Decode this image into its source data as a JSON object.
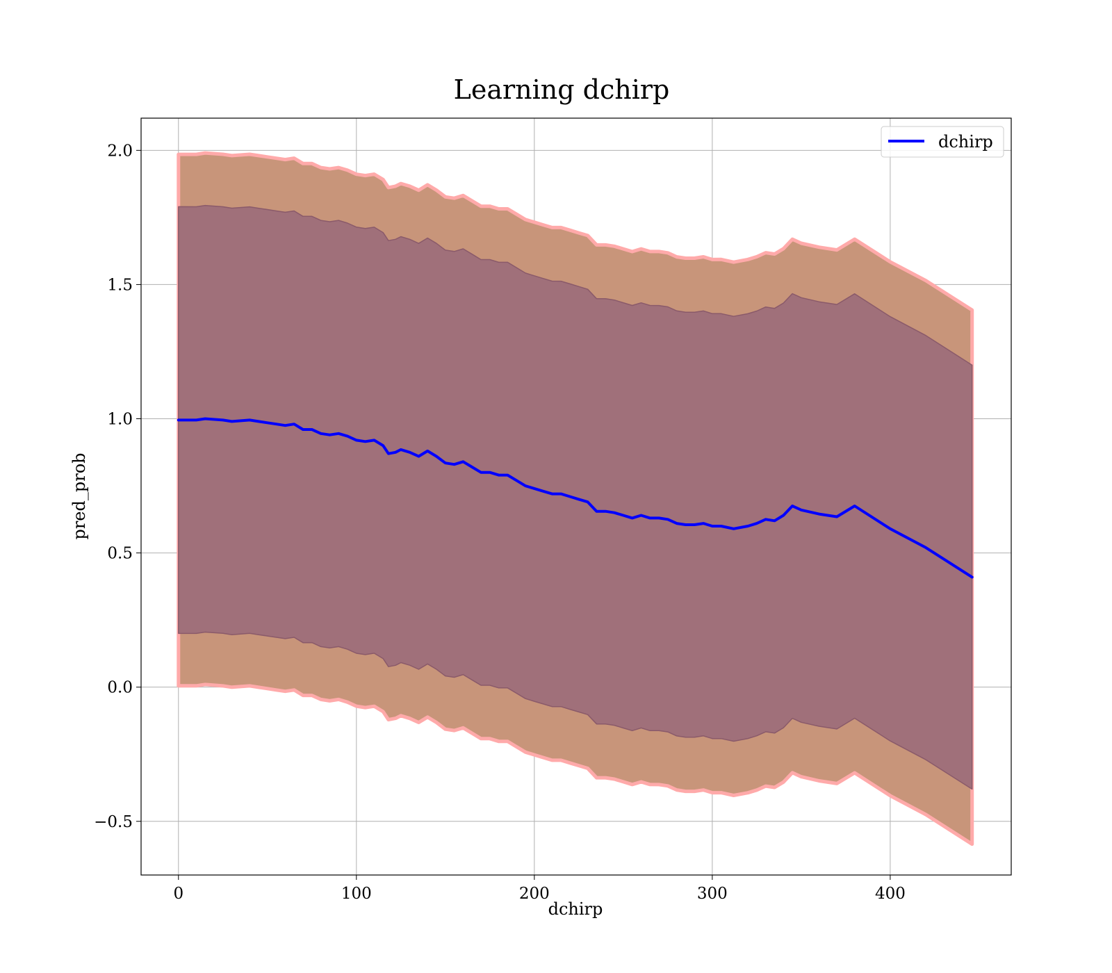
{
  "chart_data": {
    "type": "line",
    "title": "Learning dchirp",
    "xlabel": "dchirp",
    "ylabel": "pred_prob",
    "xlim": [
      -21,
      468
    ],
    "ylim": [
      -0.7,
      2.12
    ],
    "x_ticks": [
      0,
      100,
      200,
      300,
      400
    ],
    "x_tick_labels": [
      "0",
      "100",
      "200",
      "300",
      "400"
    ],
    "y_ticks": [
      -0.5,
      0.0,
      0.5,
      1.0,
      1.5,
      2.0
    ],
    "y_tick_labels": [
      "−0.5",
      "0.0",
      "0.5",
      "1.0",
      "1.5",
      "2.0"
    ],
    "grid": true,
    "legend": {
      "position": "top-right",
      "entries": [
        "dchirp"
      ]
    },
    "colors": {
      "line": "#0000ff",
      "outer_band": "#c8957a",
      "outer_band_edge": "#ffaaaa",
      "inner_band": "#a0707a",
      "inner_band_edge": "#8a5a6a"
    },
    "series": [
      {
        "name": "dchirp",
        "x": [
          0,
          10,
          15,
          25,
          30,
          40,
          45,
          50,
          55,
          60,
          65,
          70,
          75,
          80,
          85,
          90,
          95,
          100,
          105,
          110,
          115,
          118,
          122,
          125,
          130,
          135,
          140,
          145,
          150,
          155,
          160,
          165,
          170,
          175,
          180,
          185,
          190,
          195,
          200,
          205,
          210,
          215,
          220,
          225,
          230,
          235,
          240,
          245,
          250,
          255,
          260,
          265,
          270,
          275,
          280,
          285,
          290,
          295,
          300,
          305,
          312,
          320,
          325,
          330,
          335,
          340,
          345,
          350,
          360,
          370,
          380,
          400,
          420,
          446
        ],
        "y": [
          0.995,
          0.995,
          1.0,
          0.995,
          0.99,
          0.995,
          0.99,
          0.985,
          0.98,
          0.975,
          0.98,
          0.96,
          0.96,
          0.945,
          0.94,
          0.945,
          0.935,
          0.92,
          0.915,
          0.92,
          0.9,
          0.87,
          0.875,
          0.885,
          0.875,
          0.86,
          0.88,
          0.86,
          0.835,
          0.83,
          0.84,
          0.82,
          0.8,
          0.8,
          0.79,
          0.79,
          0.77,
          0.75,
          0.74,
          0.73,
          0.72,
          0.72,
          0.71,
          0.7,
          0.69,
          0.655,
          0.655,
          0.65,
          0.64,
          0.63,
          0.64,
          0.63,
          0.63,
          0.625,
          0.61,
          0.605,
          0.605,
          0.61,
          0.6,
          0.6,
          0.59,
          0.6,
          0.61,
          0.625,
          0.62,
          0.64,
          0.675,
          0.66,
          0.645,
          0.635,
          0.675,
          0.59,
          0.52,
          0.41
        ]
      }
    ],
    "bands": [
      {
        "label": "outer",
        "offset_left": 0.99,
        "offset_right": 0.995
      },
      {
        "label": "inner",
        "offset_left": 0.795,
        "offset_right": 0.79
      }
    ]
  }
}
